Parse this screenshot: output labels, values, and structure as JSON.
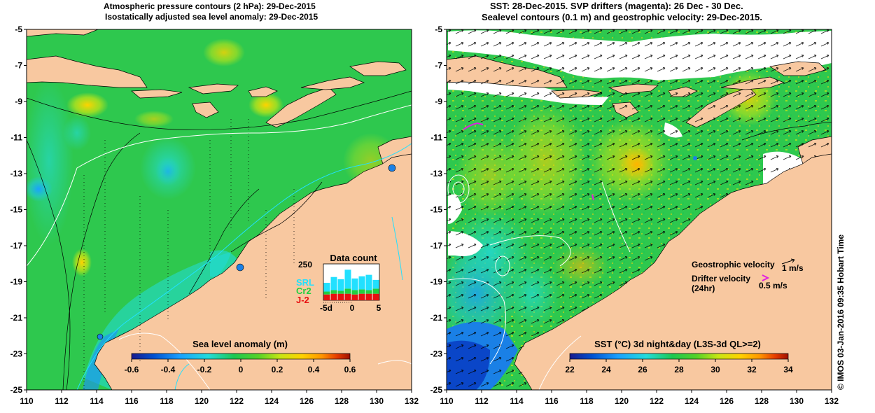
{
  "left_panel": {
    "title_line1": "Atmospheric pressure contours (2 hPa): 29-Dec-2015",
    "title_line2": "Isostatically adjusted sea level anomaly: 29-Dec-2015",
    "colorbar_title": "Sea level anomaly (m)",
    "colorbar_ticks": [
      "-0.6",
      "-0.4",
      "-0.2",
      "0",
      "0.2",
      "0.4",
      "0.6"
    ],
    "colorbar_colors": [
      "#1a1a8c",
      "#0050d0",
      "#1aa0ff",
      "#22dcdc",
      "#1ec850",
      "#55d228",
      "#c8e614",
      "#ffd200",
      "#ff9600",
      "#e63c00",
      "#a01000"
    ],
    "datacount": {
      "title": "Data count",
      "ymax_label": "250",
      "x_ticks": [
        "-5d",
        "0",
        "5"
      ],
      "series": [
        {
          "name": "SRL",
          "color": "#22e0ff",
          "values": [
            120,
            160,
            145,
            210,
            150,
            165,
            175,
            140
          ]
        },
        {
          "name": "Cr2",
          "color": "#22d040",
          "values": [
            60,
            70,
            65,
            80,
            70,
            75,
            70,
            80
          ]
        },
        {
          "name": "J-2",
          "color": "#e81010",
          "values": [
            40,
            45,
            45,
            45,
            40,
            45,
            45,
            45
          ]
        }
      ]
    }
  },
  "right_panel": {
    "title_line1": "SST: 28-Dec-2015. SVP drifters (magenta): 26 Dec - 30 Dec.",
    "title_line2": "Sealevel contours (0.1 m) and geostrophic velocity: 29-Dec-2015.",
    "colorbar_title": "SST (°C) 3d night&day (L3S-3d QL>=2)",
    "colorbar_ticks": [
      "22",
      "24",
      "26",
      "28",
      "30",
      "32",
      "34"
    ],
    "colorbar_colors": [
      "#1a1a8c",
      "#0050d0",
      "#1aa0ff",
      "#22dcdc",
      "#1ec850",
      "#55d228",
      "#c8e614",
      "#ffd200",
      "#ff9600",
      "#e63c00",
      "#a01000"
    ],
    "legend": {
      "geo_label": "Geostrophic velocity",
      "geo_scale": "1 m/s",
      "drifter_label": "Drifter velocity",
      "drifter_label2": "(24hr)",
      "drifter_scale": "0.5 m/s"
    }
  },
  "axes": {
    "lat_ticks": [
      "-5",
      "-7",
      "-9",
      "-11",
      "-13",
      "-15",
      "-17",
      "-19",
      "-21",
      "-23",
      "-25"
    ],
    "lon_ticks": [
      "110",
      "112",
      "114",
      "116",
      "118",
      "120",
      "122",
      "124",
      "126",
      "128",
      "130",
      "132"
    ]
  },
  "credit": "© IMOS 03-Jan-2016 09:35 Hobart Time"
}
